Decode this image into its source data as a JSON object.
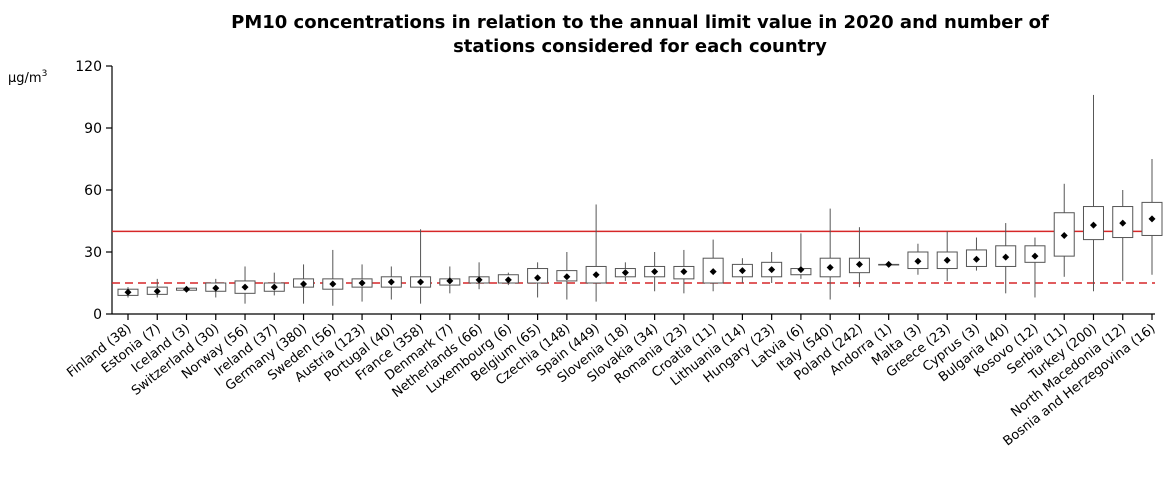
{
  "chart_data": {
    "type": "box",
    "title_lines": [
      "PM10 concentrations in relation to the annual limit value in 2020 and number of",
      "stations considered for each country"
    ],
    "y_unit": "µg/m",
    "y_unit_sup": "3",
    "ylim": [
      0,
      120
    ],
    "yticks": [
      0,
      30,
      60,
      90,
      120
    ],
    "reference_lines": [
      {
        "value": 40,
        "style": "solid",
        "color": "#d62728"
      },
      {
        "value": 15,
        "style": "dashed",
        "color": "#d62728"
      }
    ],
    "colors": {
      "box": "#555555",
      "whisker": "#555555",
      "median": "#000000"
    },
    "categories": [
      "Finland (38)",
      "Estonia (7)",
      "Iceland (3)",
      "Switzerland (30)",
      "Norway (56)",
      "Ireland (37)",
      "Germany (380)",
      "Sweden (56)",
      "Austria (123)",
      "Portugal (40)",
      "France (358)",
      "Denmark (7)",
      "Netherlands (66)",
      "Luxembourg (6)",
      "Belgium (65)",
      "Czechia (148)",
      "Spain (449)",
      "Slovenia (18)",
      "Slovakia (34)",
      "Romania (23)",
      "Croatia (11)",
      "Lithuania (14)",
      "Hungary (23)",
      "Latvia (6)",
      "Italy (540)",
      "Poland (242)",
      "Andorra (1)",
      "Malta (3)",
      "Greece (23)",
      "Cyprus (3)",
      "Bulgaria (40)",
      "Kosovo (12)",
      "Serbia (11)",
      "Turkey (200)",
      "North Macedonia (12)",
      "Bosnia and Herzegovina (16)"
    ],
    "boxes": [
      {
        "min": 8,
        "q1": 9,
        "median": 10.5,
        "q3": 12,
        "max": 13
      },
      {
        "min": 8,
        "q1": 9.5,
        "median": 11,
        "q3": 13,
        "max": 17
      },
      {
        "min": 11,
        "q1": 11.5,
        "median": 12,
        "q3": 12.5,
        "max": 13
      },
      {
        "min": 8,
        "q1": 11,
        "median": 12.5,
        "q3": 15,
        "max": 17
      },
      {
        "min": 5,
        "q1": 10,
        "median": 13,
        "q3": 16,
        "max": 23
      },
      {
        "min": 9,
        "q1": 11,
        "median": 13,
        "q3": 15,
        "max": 20
      },
      {
        "min": 5,
        "q1": 13,
        "median": 14.5,
        "q3": 17,
        "max": 24
      },
      {
        "min": 4,
        "q1": 12,
        "median": 14.5,
        "q3": 17,
        "max": 31
      },
      {
        "min": 6,
        "q1": 13,
        "median": 15,
        "q3": 17,
        "max": 24
      },
      {
        "min": 7,
        "q1": 13,
        "median": 15.5,
        "q3": 18,
        "max": 23
      },
      {
        "min": 5,
        "q1": 13,
        "median": 15.5,
        "q3": 18,
        "max": 41
      },
      {
        "min": 10,
        "q1": 14,
        "median": 16,
        "q3": 17,
        "max": 23
      },
      {
        "min": 12,
        "q1": 15,
        "median": 16.5,
        "q3": 18,
        "max": 25
      },
      {
        "min": 14,
        "q1": 15,
        "median": 16.5,
        "q3": 19,
        "max": 20
      },
      {
        "min": 8,
        "q1": 15,
        "median": 17.5,
        "q3": 22,
        "max": 25
      },
      {
        "min": 7,
        "q1": 16,
        "median": 18,
        "q3": 21,
        "max": 30
      },
      {
        "min": 6,
        "q1": 15,
        "median": 19,
        "q3": 23,
        "max": 53
      },
      {
        "min": 16,
        "q1": 18,
        "median": 20,
        "q3": 22,
        "max": 25
      },
      {
        "min": 11,
        "q1": 18,
        "median": 20.5,
        "q3": 23,
        "max": 30
      },
      {
        "min": 10,
        "q1": 17,
        "median": 20.5,
        "q3": 23,
        "max": 31
      },
      {
        "min": 11,
        "q1": 15,
        "median": 20.5,
        "q3": 27,
        "max": 36
      },
      {
        "min": 15,
        "q1": 18,
        "median": 21,
        "q3": 24,
        "max": 27
      },
      {
        "min": 15,
        "q1": 18,
        "median": 21.5,
        "q3": 25,
        "max": 30
      },
      {
        "min": 17,
        "q1": 19,
        "median": 21.5,
        "q3": 22,
        "max": 39
      },
      {
        "min": 7,
        "q1": 18,
        "median": 22.5,
        "q3": 27,
        "max": 51
      },
      {
        "min": 13,
        "q1": 20,
        "median": 24,
        "q3": 27,
        "max": 42
      },
      {
        "min": 24,
        "q1": 24,
        "median": 24,
        "q3": 24,
        "max": 24
      },
      {
        "min": 19,
        "q1": 22,
        "median": 25.5,
        "q3": 30,
        "max": 34
      },
      {
        "min": 16,
        "q1": 22,
        "median": 26,
        "q3": 30,
        "max": 40
      },
      {
        "min": 21,
        "q1": 23,
        "median": 26.5,
        "q3": 31,
        "max": 37
      },
      {
        "min": 10,
        "q1": 23,
        "median": 27.5,
        "q3": 33,
        "max": 44
      },
      {
        "min": 8,
        "q1": 25,
        "median": 28,
        "q3": 33,
        "max": 37
      },
      {
        "min": 18,
        "q1": 28,
        "median": 38,
        "q3": 49,
        "max": 63
      },
      {
        "min": 11,
        "q1": 36,
        "median": 43,
        "q3": 52,
        "max": 106
      },
      {
        "min": 16,
        "q1": 37,
        "median": 44,
        "q3": 52,
        "max": 60
      },
      {
        "min": 19,
        "q1": 38,
        "median": 46,
        "q3": 54,
        "max": 75
      }
    ]
  }
}
